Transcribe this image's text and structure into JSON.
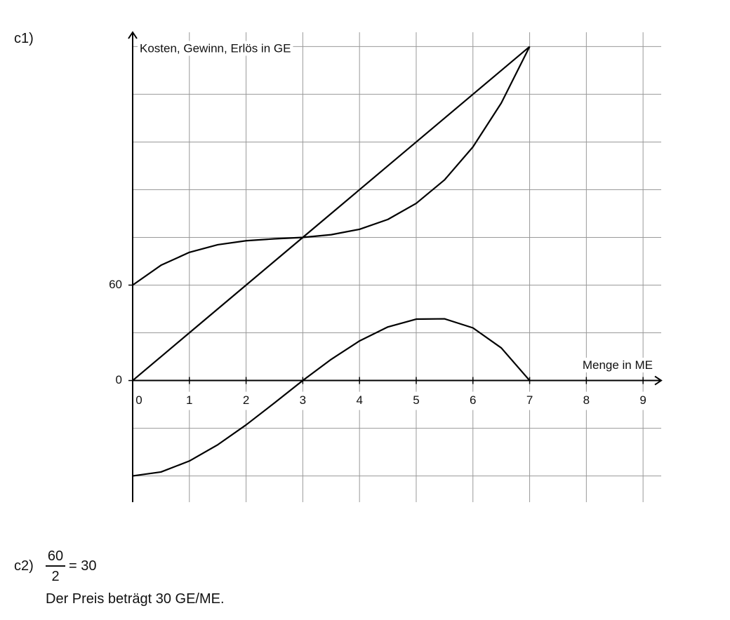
{
  "chart_data": {
    "type": "line",
    "y_label": "Kosten, Gewinn, Erlös in GE",
    "x_label": "Menge in ME",
    "x": [
      0,
      0.5,
      1,
      1.5,
      2,
      2.5,
      3,
      3.5,
      4,
      4.5,
      5,
      5.5,
      6,
      6.5,
      7
    ],
    "series": [
      {
        "color": "#000000",
        "values": [
          60,
          72.5,
          80.6,
          85.4,
          87.9,
          89.1,
          90,
          91.7,
          95.1,
          101.3,
          111.4,
          126.2,
          146.9,
          174.5,
          210
        ]
      },
      {
        "color": "#000000",
        "values": [
          0,
          15,
          30,
          45,
          60,
          75,
          90,
          105,
          120,
          135,
          150,
          165,
          180,
          195,
          210
        ]
      },
      {
        "color": "#000000",
        "values": [
          -60,
          -57.5,
          -50.6,
          -40.4,
          -27.9,
          -14.1,
          0,
          13.3,
          24.9,
          33.7,
          38.6,
          38.8,
          33.1,
          20.5,
          0
        ]
      }
    ],
    "xlim": [
      0,
      9.32
    ],
    "ylim": [
      -76.5,
      219
    ],
    "xticks": [
      0,
      1,
      2,
      3,
      4,
      5,
      6,
      7,
      8,
      9
    ],
    "yticks": [
      0,
      60
    ],
    "ygrid": [
      -60,
      -30,
      30,
      60,
      90,
      120,
      150,
      180,
      210
    ],
    "xgrid": [
      1,
      2,
      3,
      4,
      5,
      6,
      7,
      8,
      9
    ],
    "grid": true
  },
  "document": {
    "part1": "c1)",
    "part2": "c2)",
    "numerator": "60",
    "denominator": "2",
    "result": "= 30",
    "sentence": "Der Preis beträgt 30 GE/ME."
  }
}
